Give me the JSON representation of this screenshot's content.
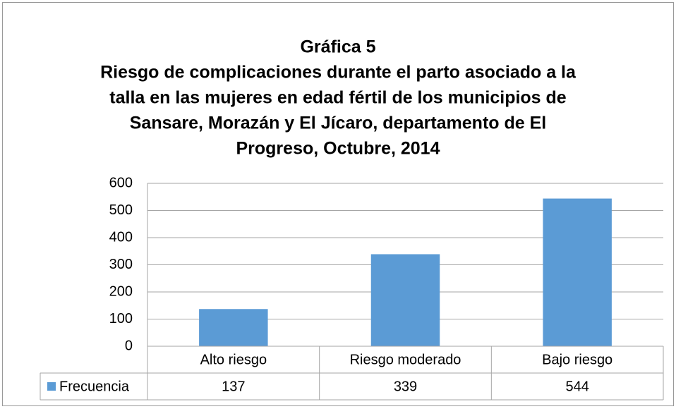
{
  "chart_data": {
    "type": "bar",
    "title": "Gráfica 5",
    "subtitle": [
      "Riesgo de complicaciones durante el parto asociado a la",
      "talla en las mujeres en edad fértil de los municipios de",
      "Sansare, Morazán y El Jícaro, departamento de El",
      "Progreso, Octubre, 2014"
    ],
    "categories": [
      "Alto riesgo",
      "Riesgo moderado",
      "Bajo riesgo"
    ],
    "series": [
      {
        "name": "Frecuencia",
        "color": "#5b9bd5",
        "values": [
          137,
          339,
          544
        ]
      }
    ],
    "ylim": [
      0,
      600
    ],
    "yticks": [
      0,
      100,
      200,
      300,
      400,
      500,
      600
    ],
    "grid": true,
    "data_table": true
  }
}
